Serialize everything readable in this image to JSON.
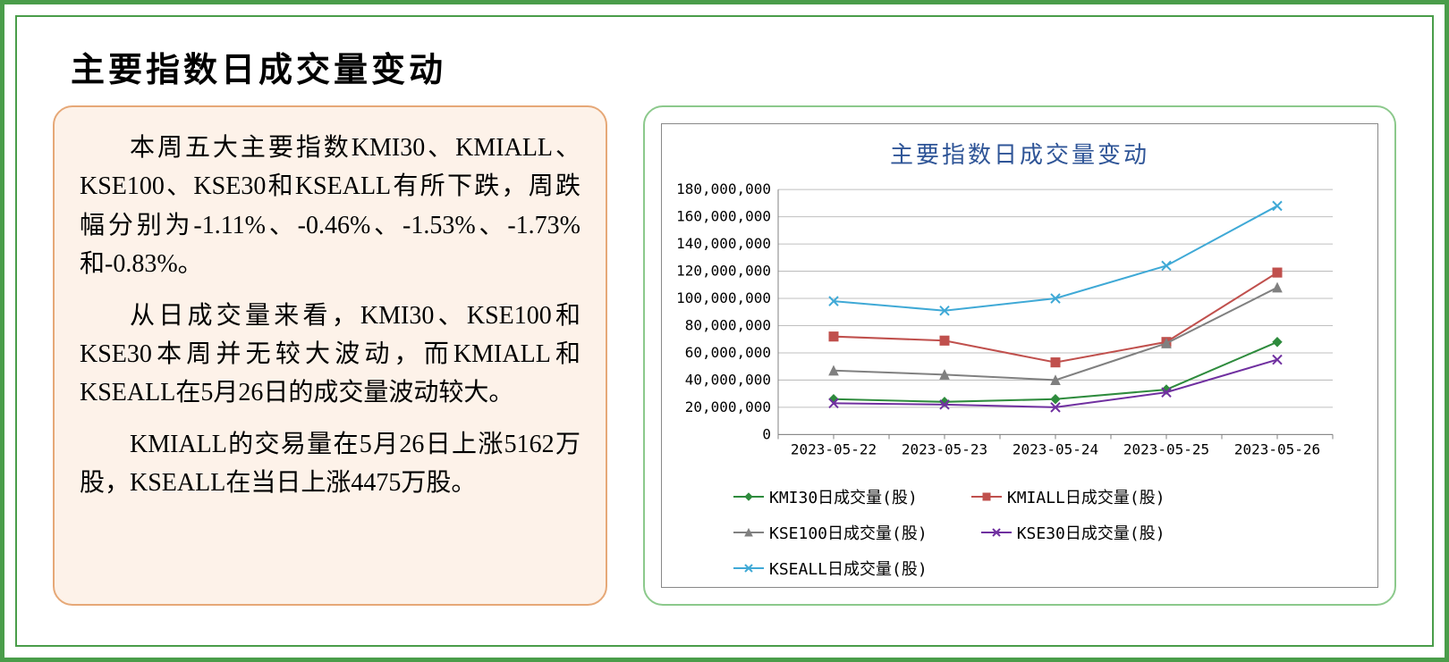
{
  "page": {
    "title": "主要指数日成交量变动",
    "outer_border_color": "#4a9d4a",
    "background_color": "#ffffff"
  },
  "text_panel": {
    "background_color": "#fdf2e9",
    "border_color": "#e6a877",
    "border_radius": 22,
    "font_size": 28,
    "text_color": "#000000",
    "paragraphs": [
      "本周五大主要指数KMI30、KMIALL、KSE100、KSE30和KSEALL有所下跌，周跌幅分别为-1.11%、-0.46%、-1.53%、-1.73%和-0.83%。",
      "从日成交量来看，KMI30、KSE100和KSE30本周并无较大波动，而KMIALL和KSEALL在5月26日的成交量波动较大。",
      "KMIALL的交易量在5月26日上涨5162万股，KSEALL在当日上涨4475万股。"
    ]
  },
  "chart": {
    "type": "line",
    "title": "主要指数日成交量变动",
    "title_color": "#2f5597",
    "title_fontsize": 26,
    "panel_border_color": "#8cc98c",
    "panel_border_radius": 22,
    "inner_border_color": "#888888",
    "background_color": "#ffffff",
    "grid_color": "#bfbfbf",
    "axis_color": "#808080",
    "axis_font_size": 16,
    "line_width": 2,
    "marker_size": 5,
    "x": {
      "categories": [
        "2023-05-22",
        "2023-05-23",
        "2023-05-24",
        "2023-05-25",
        "2023-05-26"
      ]
    },
    "y": {
      "min": 0,
      "max": 180000000,
      "tick_step": 20000000,
      "tick_labels": [
        "0",
        "20,000,000",
        "40,000,000",
        "60,000,000",
        "80,000,000",
        "100,000,000",
        "120,000,000",
        "140,000,000",
        "160,000,000",
        "180,000,000"
      ]
    },
    "series": [
      {
        "name": "KMI30日成交量(股)",
        "color": "#2e8b3d",
        "marker": "diamond",
        "values": [
          26000000,
          24000000,
          26000000,
          33000000,
          68000000
        ]
      },
      {
        "name": "KMIALL日成交量(股)",
        "color": "#c0504d",
        "marker": "square",
        "values": [
          72000000,
          69000000,
          53000000,
          68000000,
          119000000
        ]
      },
      {
        "name": "KSE100日成交量(股)",
        "color": "#808080",
        "marker": "triangle",
        "values": [
          47000000,
          44000000,
          40000000,
          67000000,
          108000000
        ]
      },
      {
        "name": "KSE30日成交量(股)",
        "color": "#7030a0",
        "marker": "x",
        "values": [
          23000000,
          22000000,
          20000000,
          31000000,
          55000000
        ]
      },
      {
        "name": "KSEALL日成交量(股)",
        "color": "#3fa9d6",
        "marker": "x",
        "values": [
          98000000,
          91000000,
          100000000,
          124000000,
          168000000
        ]
      }
    ]
  }
}
